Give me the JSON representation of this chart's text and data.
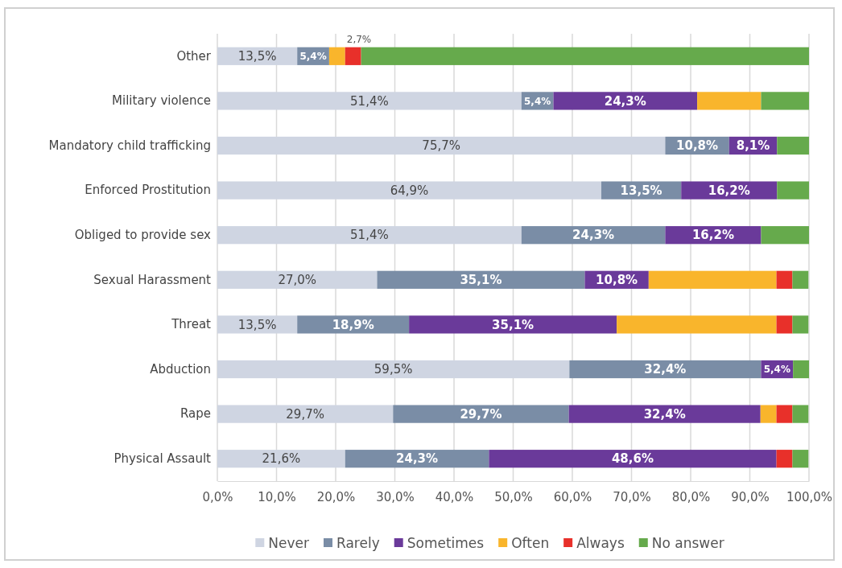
{
  "chart_data": {
    "type": "bar",
    "orientation": "horizontal",
    "stacked": true,
    "categories": [
      "Other",
      "Military violence",
      "Mandatory child trafficking",
      "Enforced Prostitution",
      "Obliged to provide sex",
      "Sexual Harassment",
      "Threat",
      "Abduction",
      "Rape",
      "Physical Assault"
    ],
    "series": [
      {
        "name": "Never",
        "color": "#cfd5e2",
        "values": [
          13.5,
          51.4,
          75.7,
          64.9,
          51.4,
          27.0,
          13.5,
          59.5,
          29.7,
          21.6
        ],
        "value_labels": [
          "13,5%",
          "51,4%",
          "75,7%",
          "64,9%",
          "51,4%",
          "27,0%",
          "13,5%",
          "59,5%",
          "29,7%",
          "21,6%"
        ]
      },
      {
        "name": "Rarely",
        "color": "#7a8da6",
        "values": [
          5.4,
          5.4,
          10.8,
          13.5,
          24.3,
          35.1,
          18.9,
          32.4,
          29.7,
          24.3
        ],
        "value_labels": [
          "5,4%",
          "5,4%",
          "10,8%",
          "13,5%",
          "24,3%",
          "35,1%",
          "18,9%",
          "32,4%",
          "29,7%",
          "24,3%"
        ]
      },
      {
        "name": "Sometimes",
        "color": "#6a3a9a",
        "values": [
          0,
          24.3,
          8.1,
          16.2,
          16.2,
          10.8,
          35.1,
          5.4,
          32.4,
          48.6
        ],
        "value_labels": [
          null,
          "24,3%",
          "8,1%",
          "16,2%",
          "16,2%",
          "10,8%",
          "35,1%",
          "5,4%",
          "32,4%",
          "48,6%"
        ]
      },
      {
        "name": "Often",
        "color": "#f9b52c",
        "values": [
          2.7,
          10.8,
          0,
          0,
          0,
          21.6,
          27.0,
          0,
          2.7,
          0
        ],
        "value_labels": [
          "2,7%",
          null,
          null,
          null,
          null,
          null,
          null,
          null,
          null,
          null
        ]
      },
      {
        "name": "Always",
        "color": "#e8302a",
        "values": [
          2.7,
          0,
          0,
          0,
          0,
          2.7,
          2.7,
          0,
          2.7,
          2.7
        ]
      },
      {
        "name": "No answer",
        "color": "#66aa4c",
        "values": [
          75.7,
          8.1,
          5.4,
          5.4,
          8.1,
          2.7,
          2.7,
          2.7,
          2.7,
          2.7
        ]
      }
    ],
    "xlim": [
      0,
      100
    ],
    "xticks": [
      {
        "value": 0,
        "label": "0,0%"
      },
      {
        "value": 10,
        "label": "10,0%"
      },
      {
        "value": 20,
        "label": "20,0%"
      },
      {
        "value": 30,
        "label": "30,0%"
      },
      {
        "value": 40,
        "label": "40,0%"
      },
      {
        "value": 50,
        "label": "50,0%"
      },
      {
        "value": 60,
        "label": "60,0%"
      },
      {
        "value": 70,
        "label": "70,0%"
      },
      {
        "value": 80,
        "label": "80,0%"
      },
      {
        "value": 90,
        "label": "90,0%"
      },
      {
        "value": 100,
        "label": "100,0%"
      }
    ],
    "grid": "x",
    "legend": "bottom"
  }
}
